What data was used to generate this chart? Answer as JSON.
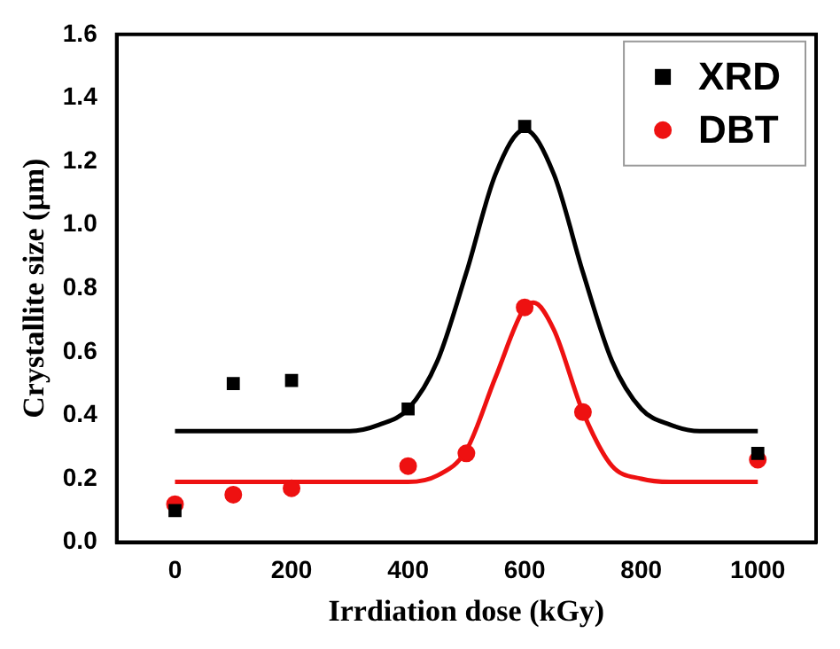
{
  "chart_data": {
    "type": "scatter",
    "xlabel": "Irrdiation dose (kGy)",
    "ylabel": "Crystallite size (μm)",
    "xlim": [
      -100,
      1100
    ],
    "xticks": [
      0,
      200,
      400,
      600,
      800,
      1000
    ],
    "ylim": [
      0,
      1.6
    ],
    "yticks": [
      {
        "value": 0,
        "label": "0.0"
      },
      0.2,
      0.4,
      0.6,
      0.8,
      {
        "value": 1,
        "label": "1.0"
      },
      1.2,
      1.4,
      1.6
    ],
    "grid": false,
    "legend": "top right",
    "series": [
      {
        "name": "XRD",
        "color": "#000000",
        "marker": "square",
        "x": [
          0,
          100,
          200,
          400,
          600,
          1000
        ],
        "values": [
          0.1,
          0.5,
          0.51,
          0.42,
          1.31,
          0.28
        ]
      },
      {
        "name": "DBT",
        "color": "#ee1111",
        "marker": "circle",
        "x": [
          0,
          100,
          200,
          400,
          500,
          600,
          700,
          1000
        ],
        "values": [
          0.12,
          0.15,
          0.17,
          0.24,
          0.28,
          0.74,
          0.41,
          0.26
        ]
      },
      {
        "type": "line",
        "color": "#000000",
        "marker": "none",
        "x": [
          0,
          100,
          200,
          300,
          350,
          400,
          450,
          500,
          550,
          600,
          650,
          700,
          750,
          800,
          850,
          900,
          1000
        ],
        "values": [
          0.35,
          0.35,
          0.35,
          0.35,
          0.37,
          0.42,
          0.57,
          0.85,
          1.16,
          1.3,
          1.16,
          0.85,
          0.57,
          0.42,
          0.37,
          0.35,
          0.35
        ]
      },
      {
        "type": "line",
        "color": "#ee1111",
        "marker": "none",
        "x": [
          0,
          200,
          400,
          450,
          500,
          550,
          600,
          615,
          650,
          700,
          750,
          800,
          850,
          1000
        ],
        "values": [
          0.19,
          0.19,
          0.19,
          0.21,
          0.29,
          0.52,
          0.74,
          0.755,
          0.67,
          0.41,
          0.24,
          0.2,
          0.19,
          0.19
        ]
      }
    ]
  }
}
